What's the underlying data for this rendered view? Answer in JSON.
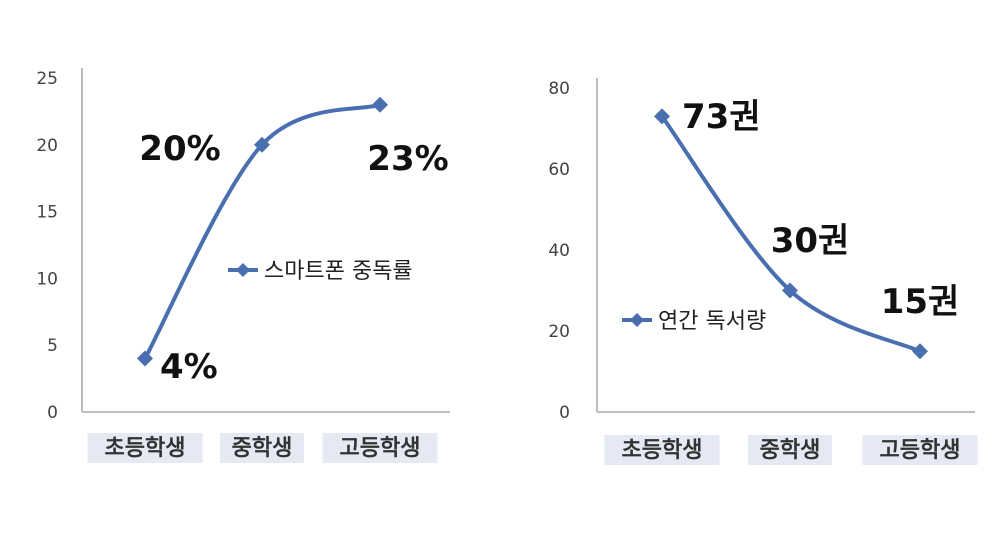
{
  "chart_data": [
    {
      "type": "line",
      "categories": [
        "초등학생",
        "중학생",
        "고등학생"
      ],
      "series": [
        {
          "name": "스마트폰 중독률",
          "values": [
            4,
            20,
            23
          ],
          "color": "#4a6fb0"
        }
      ],
      "data_labels": [
        "4%",
        "20%",
        "23%"
      ],
      "ylim": [
        0,
        25
      ],
      "yticks": [
        "0",
        "5",
        "10",
        "15",
        "20",
        "25"
      ],
      "smooth": true,
      "grid": false,
      "legend_position": "center-right"
    },
    {
      "type": "line",
      "categories": [
        "초등학생",
        "중학생",
        "고등학생"
      ],
      "series": [
        {
          "name": "연간 독서량",
          "values": [
            73,
            30,
            15
          ],
          "color": "#4a6fb0"
        }
      ],
      "data_labels": [
        "73권",
        "30권",
        "15권"
      ],
      "ylim": [
        0,
        80
      ],
      "yticks": [
        "0",
        "20",
        "40",
        "60",
        "80"
      ],
      "smooth": true,
      "grid": false,
      "legend_position": "center-left"
    }
  ]
}
